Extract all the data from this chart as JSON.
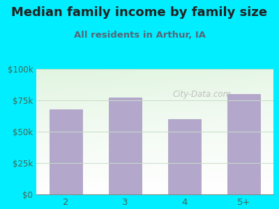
{
  "title": "Median family income by family size",
  "subtitle": "All residents in Arthur, IA",
  "categories": [
    "2",
    "3",
    "4",
    "5+"
  ],
  "values": [
    68000,
    77000,
    60000,
    80000
  ],
  "bar_color": "#b3a8cc",
  "bar_edge_color": "#a898c0",
  "background_outer": "#00eeff",
  "title_color": "#222222",
  "subtitle_color": "#556677",
  "tick_color": "#446655",
  "ylim": [
    0,
    100000
  ],
  "yticks": [
    0,
    25000,
    50000,
    75000,
    100000
  ],
  "ytick_labels": [
    "$0",
    "$25k",
    "$50k",
    "$75k",
    "$100k"
  ],
  "watermark": "City-Data.com",
  "title_fontsize": 13,
  "subtitle_fontsize": 9.5,
  "bar_width": 0.55
}
